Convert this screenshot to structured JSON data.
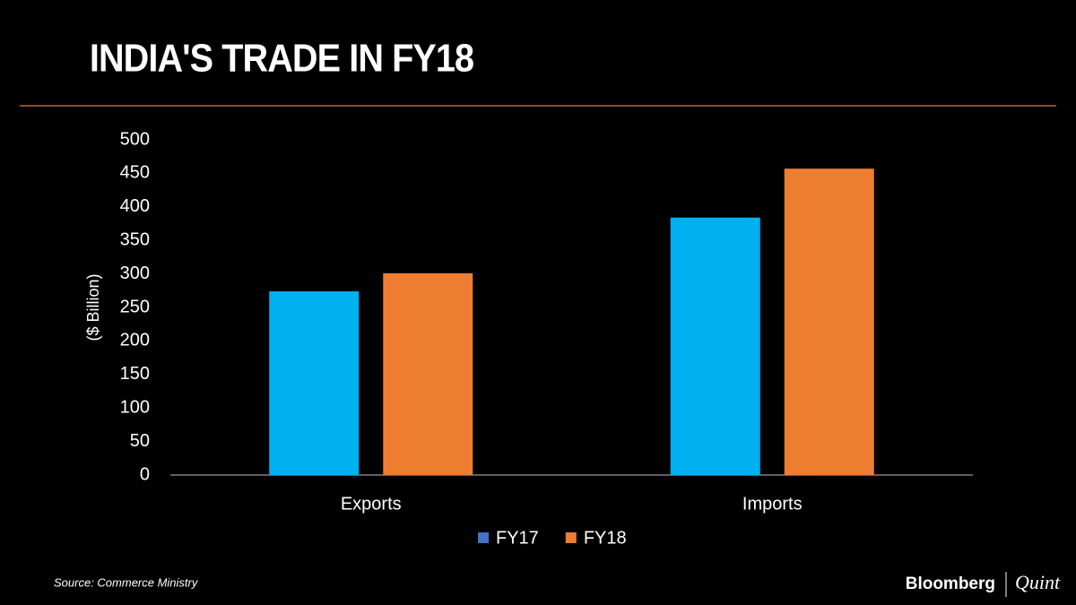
{
  "chart_data": {
    "type": "bar",
    "title": "INDIA'S TRADE IN FY18",
    "y_label": "($ Billion)",
    "categories": [
      "Exports",
      "Imports"
    ],
    "series": [
      {
        "name": "FY17",
        "color": "#00b0f0",
        "legend_color": "#4472c4",
        "values": [
          274,
          384
        ]
      },
      {
        "name": "FY18",
        "color": "#ed7d31",
        "legend_color": "#ed7d31",
        "values": [
          301,
          457
        ]
      }
    ],
    "ylim": [
      0,
      500
    ],
    "yticks": [
      0,
      50,
      100,
      150,
      200,
      250,
      300,
      350,
      400,
      450,
      500
    ],
    "legend": "bottom",
    "source": "Source: Commerce Ministry",
    "brand": [
      "Bloomberg",
      "Quint"
    ]
  }
}
